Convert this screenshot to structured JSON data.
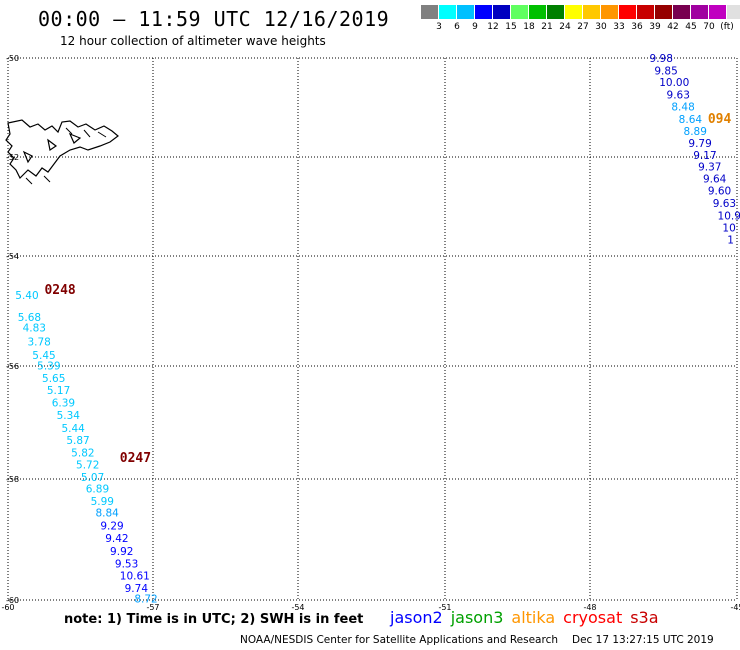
{
  "header": {
    "title": "00:00 – 11:59 UTC 12/16/2019",
    "subtitle": "12 hour collection of altimeter wave heights"
  },
  "legend": {
    "colors": [
      "#808080",
      "#00ffff",
      "#00c0ff",
      "#0000ff",
      "#0000c0",
      "#60ff60",
      "#00c000",
      "#008000",
      "#ffff00",
      "#ffc800",
      "#ff9600",
      "#ff0000",
      "#c80000",
      "#960000",
      "#780050",
      "#a000a0",
      "#c000c0",
      "#e0e0e0",
      "#000000"
    ],
    "labels": [
      "3",
      "6",
      "9",
      "12",
      "15",
      "18",
      "21",
      "24",
      "27",
      "30",
      "33",
      "36",
      "39",
      "42",
      "45",
      "70",
      "(ft)"
    ]
  },
  "map": {
    "lon_ticks": [
      "-60",
      "-57",
      "-54",
      "-51",
      "-48",
      "-45"
    ],
    "lat_ticks": [
      "-50",
      "-52",
      "-54",
      "-56",
      "-58",
      "-60"
    ],
    "lat_tick_values": [
      -50,
      -52,
      -54,
      -56,
      -58,
      -60
    ],
    "track_labels": [
      {
        "text": "0248",
        "color": "#800000",
        "lon": -59.25,
        "lat": -54.35
      },
      {
        "text": "0247",
        "color": "#800000",
        "lon": -57.7,
        "lat": -57.45
      },
      {
        "text": "094",
        "color": "#e08000",
        "lon": -45.6,
        "lat": -51.2
      }
    ],
    "tracks": [
      {
        "points": [
          {
            "v": "5.40",
            "c": "#00c8ff",
            "lon": -59.85,
            "lat": -54.45
          },
          {
            "v": "5.68",
            "c": "#00c8ff",
            "lon": -59.8,
            "lat": -54.85
          },
          {
            "v": "4.83",
            "c": "#00c8ff",
            "lon": -59.7,
            "lat": -55.05
          },
          {
            "v": "3.78",
            "c": "#00c8ff",
            "lon": -59.6,
            "lat": -55.3
          },
          {
            "v": "5.45",
            "c": "#00c8ff",
            "lon": -59.5,
            "lat": -55.55
          },
          {
            "v": "5.39",
            "c": "#00c8ff",
            "lon": -59.4,
            "lat": -55.75
          },
          {
            "v": "5.65",
            "c": "#00c8ff",
            "lon": -59.3,
            "lat": -55.98
          },
          {
            "v": "5.17",
            "c": "#00c8ff",
            "lon": -59.2,
            "lat": -56.2
          },
          {
            "v": "6.39",
            "c": "#00c8ff",
            "lon": -59.1,
            "lat": -56.43
          },
          {
            "v": "5.34",
            "c": "#00c8ff",
            "lon": -59.0,
            "lat": -56.66
          },
          {
            "v": "5.44",
            "c": "#00c8ff",
            "lon": -58.9,
            "lat": -56.9
          },
          {
            "v": "5.87",
            "c": "#00c8ff",
            "lon": -58.8,
            "lat": -57.12
          },
          {
            "v": "5.82",
            "c": "#00c8ff",
            "lon": -58.7,
            "lat": -57.35
          },
          {
            "v": "5.72",
            "c": "#00c8ff",
            "lon": -58.6,
            "lat": -57.57
          },
          {
            "v": "5.07",
            "c": "#00c8ff",
            "lon": -58.5,
            "lat": -57.8
          },
          {
            "v": "6.89",
            "c": "#00c8ff",
            "lon": -58.4,
            "lat": -58.02
          },
          {
            "v": "5.99",
            "c": "#00c8ff",
            "lon": -58.3,
            "lat": -58.25
          },
          {
            "v": "8.84",
            "c": "#00a0ff",
            "lon": -58.2,
            "lat": -58.46
          },
          {
            "v": "9.29",
            "c": "#0000ff",
            "lon": -58.1,
            "lat": -58.7
          },
          {
            "v": "9.42",
            "c": "#0000ff",
            "lon": -58.0,
            "lat": -58.93
          },
          {
            "v": "9.92",
            "c": "#0000ff",
            "lon": -57.9,
            "lat": -59.17
          },
          {
            "v": "9.53",
            "c": "#0000ff",
            "lon": -57.8,
            "lat": -59.4
          },
          {
            "v": "10.61",
            "c": "#0000ff",
            "lon": -57.7,
            "lat": -59.62
          },
          {
            "v": "9.74",
            "c": "#0000ff",
            "lon": -57.6,
            "lat": -59.85
          },
          {
            "v": "8.72",
            "c": "#00a0ff",
            "lon": -57.4,
            "lat": -60.05
          }
        ]
      },
      {
        "points": [
          {
            "v": "9.98",
            "c": "#0000c8",
            "lon": -46.8,
            "lat": -50.07
          },
          {
            "v": "9.85",
            "c": "#0000c8",
            "lon": -46.7,
            "lat": -50.3
          },
          {
            "v": "10.00",
            "c": "#0000c8",
            "lon": -46.6,
            "lat": -50.52
          },
          {
            "v": "9.63",
            "c": "#0000c8",
            "lon": -46.45,
            "lat": -50.75
          },
          {
            "v": "8.48",
            "c": "#00a0ff",
            "lon": -46.35,
            "lat": -50.97
          },
          {
            "v": "8.64",
            "c": "#00a0ff",
            "lon": -46.2,
            "lat": -51.2
          },
          {
            "v": "8.89",
            "c": "#00a0ff",
            "lon": -46.1,
            "lat": -51.42
          },
          {
            "v": "9.79",
            "c": "#0000c8",
            "lon": -46.0,
            "lat": -51.64
          },
          {
            "v": "9.17",
            "c": "#0000c8",
            "lon": -45.9,
            "lat": -51.86
          },
          {
            "v": "9.37",
            "c": "#0000c8",
            "lon": -45.8,
            "lat": -52.08
          },
          {
            "v": "9.64",
            "c": "#0000c8",
            "lon": -45.7,
            "lat": -52.3
          },
          {
            "v": "9.60",
            "c": "#0000c8",
            "lon": -45.6,
            "lat": -52.52
          },
          {
            "v": "9.63",
            "c": "#0000c8",
            "lon": -45.5,
            "lat": -52.75
          },
          {
            "v": "10.9",
            "c": "#0000c8",
            "lon": -45.4,
            "lat": -52.98
          },
          {
            "v": "10",
            "c": "#0000c8",
            "lon": -45.3,
            "lat": -53.2
          },
          {
            "v": "1",
            "c": "#0000c8",
            "lon": -45.2,
            "lat": -53.42
          }
        ]
      }
    ]
  },
  "footer": {
    "note": "note:  1) Time is in UTC; 2) SWH is in feet",
    "satellites": [
      {
        "name": "jason2",
        "color": "#0000ff"
      },
      {
        "name": "jason3",
        "color": "#00a000"
      },
      {
        "name": "altika",
        "color": "#ff9600"
      },
      {
        "name": "cryosat",
        "color": "#ff0000"
      },
      {
        "name": "s3a",
        "color": "#c80000"
      }
    ],
    "credit": "NOAA/NESDIS Center for Satellite Applications and Research",
    "timestamp": "Dec 17 13:27:15 UTC 2019"
  }
}
